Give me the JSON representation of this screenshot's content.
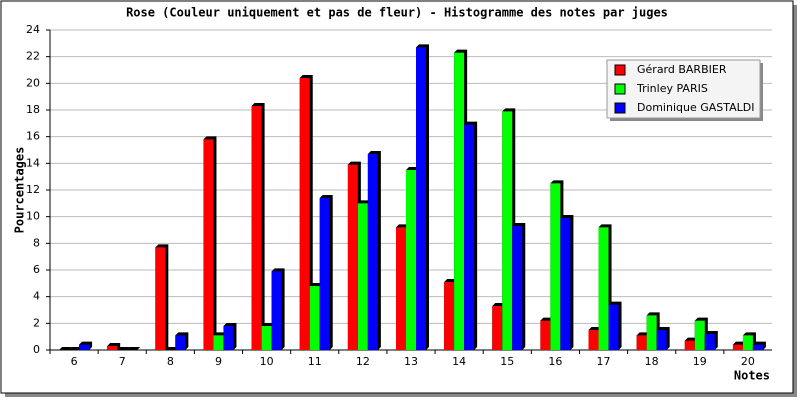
{
  "chart_data": {
    "type": "bar",
    "title": "Rose (Couleur uniquement et pas de fleur) - Histogramme des notes par juges",
    "y_label": "Pourcentages",
    "x_label": "Notes",
    "categories": [
      "6",
      "7",
      "8",
      "9",
      "10",
      "11",
      "12",
      "13",
      "14",
      "15",
      "16",
      "17",
      "18",
      "19",
      "20"
    ],
    "series": [
      {
        "name": "Gérard BARBIER",
        "color": "#ff0000",
        "values": [
          0,
          0.3,
          7.7,
          15.8,
          18.3,
          20.4,
          13.9,
          9.2,
          5.1,
          3.3,
          2.2,
          1.5,
          1.1,
          0.7,
          0.4
        ]
      },
      {
        "name": "Trinley PARIS",
        "color": "#00ff00",
        "values": [
          0,
          0,
          0,
          1.1,
          1.8,
          4.8,
          11.0,
          13.5,
          22.3,
          17.9,
          12.5,
          9.2,
          2.6,
          2.2,
          1.1
        ]
      },
      {
        "name": "Dominique GASTALDI",
        "color": "#0000ff",
        "values": [
          0.4,
          0,
          1.1,
          1.8,
          5.9,
          11.4,
          14.7,
          22.7,
          16.9,
          9.3,
          9.9,
          3.4,
          1.5,
          1.2,
          0.4
        ]
      }
    ],
    "ylim": [
      0,
      24
    ],
    "yticks": [
      0,
      2,
      4,
      6,
      8,
      10,
      12,
      14,
      16,
      18,
      20,
      22,
      24
    ],
    "grid": true,
    "legend": "upper right"
  }
}
